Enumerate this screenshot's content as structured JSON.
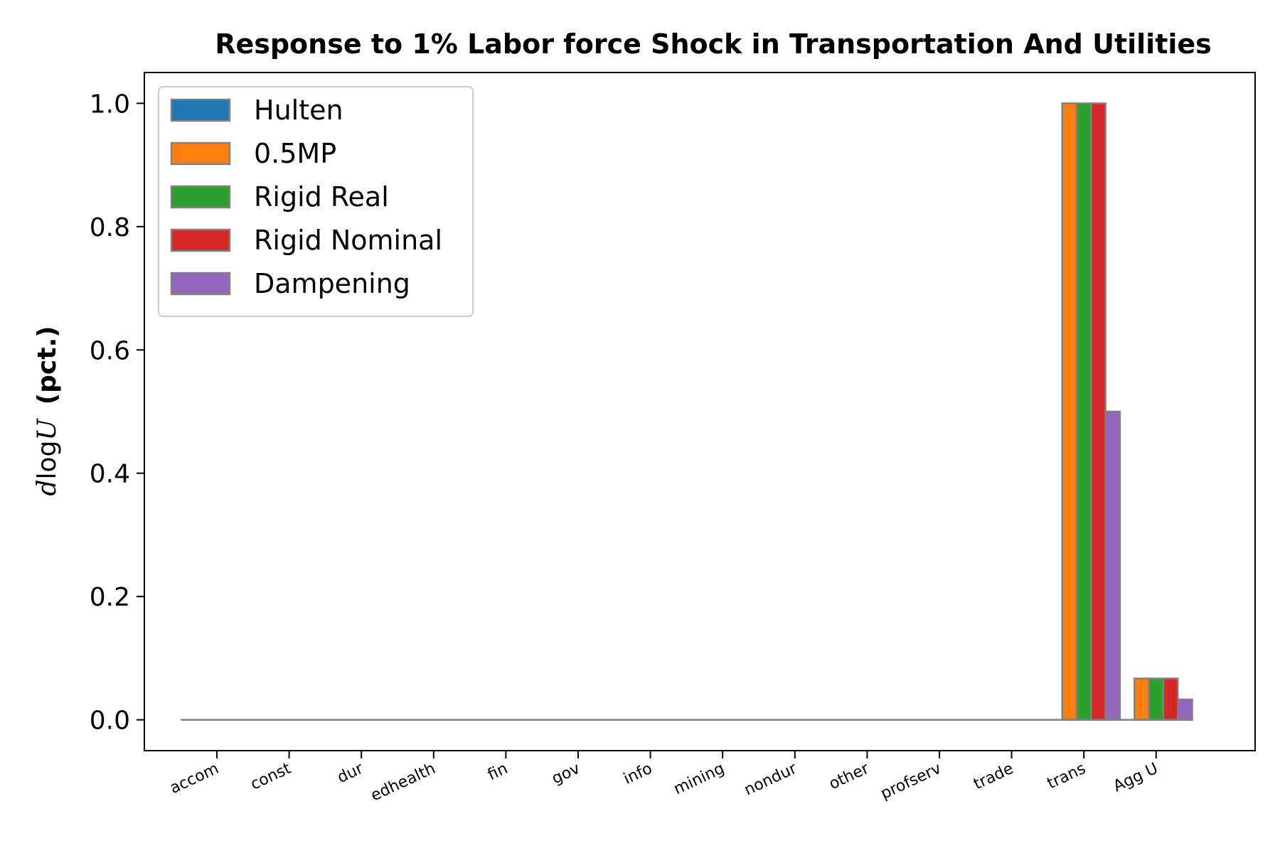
{
  "chart_data": {
    "type": "bar",
    "title": "Response to 1% Labor force Shock in Transportation And Utilities",
    "ylabel": {
      "italic_d": "d",
      "log": "log",
      "italic_u": "U",
      "unit": "(pct.)"
    },
    "categories": [
      "accom",
      "const",
      "dur",
      "edhealth",
      "fin",
      "gov",
      "info",
      "mining",
      "nondur",
      "other",
      "profserv",
      "trade",
      "trans",
      "Agg U"
    ],
    "ylim": [
      -0.05,
      1.05
    ],
    "yticks": [
      0.0,
      0.2,
      0.4,
      0.6,
      0.8,
      1.0
    ],
    "ytick_labels": [
      "0.0",
      "0.2",
      "0.4",
      "0.6",
      "0.8",
      "1.0"
    ],
    "grid": false,
    "legend_position": "top-left",
    "series": [
      {
        "name": "Hulten",
        "color": "#1f77b4",
        "values": [
          0,
          0,
          0,
          0,
          0,
          0,
          0,
          0,
          0,
          0,
          0,
          0,
          0,
          0
        ]
      },
      {
        "name": "0.5MP",
        "color": "#ff7f0e",
        "values": [
          0,
          0,
          0,
          0,
          0,
          0,
          0,
          0,
          0,
          0,
          0,
          0,
          1.0,
          0.067
        ]
      },
      {
        "name": "Rigid Real",
        "color": "#2ca02c",
        "values": [
          0,
          0,
          0,
          0,
          0,
          0,
          0,
          0,
          0,
          0,
          0,
          0,
          1.0,
          0.067
        ]
      },
      {
        "name": "Rigid Nominal",
        "color": "#d62728",
        "values": [
          0,
          0,
          0,
          0,
          0,
          0,
          0,
          0,
          0,
          0,
          0,
          0,
          1.0,
          0.067
        ]
      },
      {
        "name": "Dampening",
        "color": "#9467bd",
        "values": [
          0,
          0,
          0,
          0,
          0,
          0,
          0,
          0,
          0,
          0,
          0,
          0,
          0.5,
          0.033
        ]
      }
    ]
  }
}
